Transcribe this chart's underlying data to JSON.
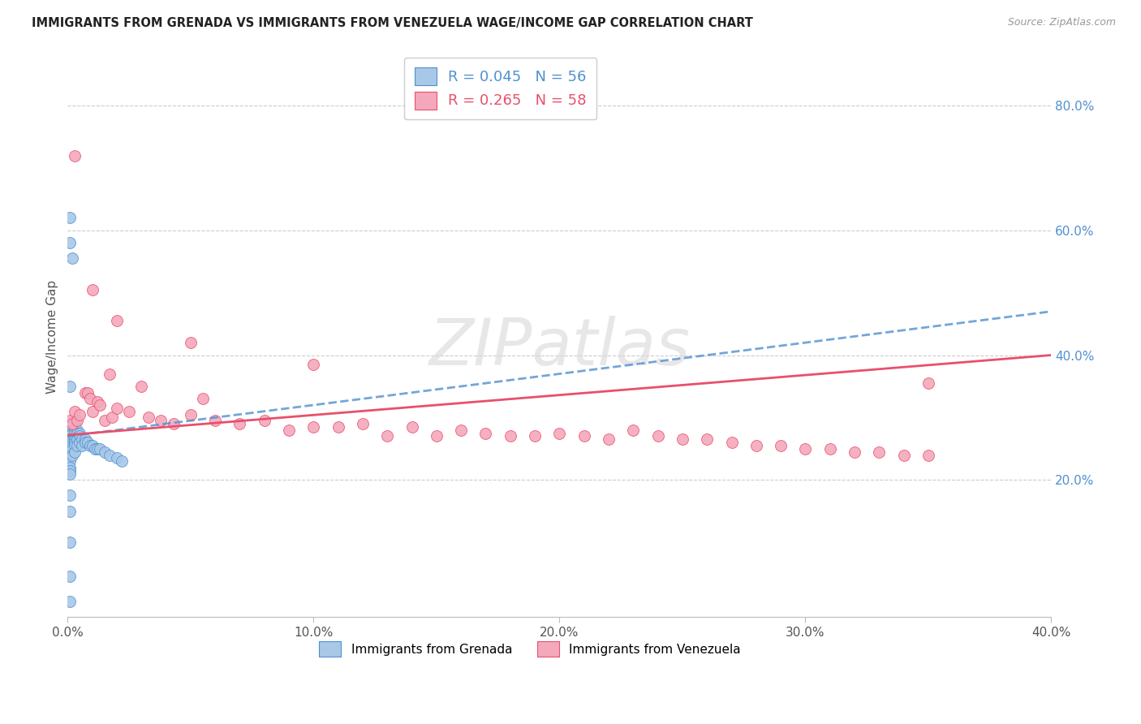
{
  "title": "IMMIGRANTS FROM GRENADA VS IMMIGRANTS FROM VENEZUELA WAGE/INCOME GAP CORRELATION CHART",
  "source": "Source: ZipAtlas.com",
  "ylabel": "Wage/Income Gap",
  "xlim": [
    0.0,
    0.4
  ],
  "ylim": [
    -0.02,
    0.88
  ],
  "xtick_labels": [
    "0.0%",
    "10.0%",
    "20.0%",
    "30.0%",
    "40.0%"
  ],
  "xtick_values": [
    0.0,
    0.1,
    0.2,
    0.3,
    0.4
  ],
  "ytick_labels": [
    "20.0%",
    "40.0%",
    "60.0%",
    "80.0%"
  ],
  "ytick_values": [
    0.2,
    0.4,
    0.6,
    0.8
  ],
  "grenada_R": 0.045,
  "grenada_N": 56,
  "venezuela_R": 0.265,
  "venezuela_N": 58,
  "grenada_color": "#a8c8e8",
  "venezuela_color": "#f4a8bc",
  "grenada_line_color": "#5090d0",
  "venezuela_line_color": "#e8506c",
  "watermark": "ZIPatlas",
  "grenada_x": [
    0.001,
    0.001,
    0.001,
    0.001,
    0.001,
    0.001,
    0.001,
    0.001,
    0.001,
    0.001,
    0.001,
    0.001,
    0.001,
    0.001,
    0.001,
    0.002,
    0.002,
    0.002,
    0.002,
    0.002,
    0.002,
    0.002,
    0.003,
    0.003,
    0.003,
    0.003,
    0.003,
    0.003,
    0.003,
    0.004,
    0.004,
    0.004,
    0.004,
    0.005,
    0.005,
    0.005,
    0.006,
    0.006,
    0.007,
    0.007,
    0.008,
    0.009,
    0.01,
    0.011,
    0.012,
    0.013,
    0.015,
    0.017,
    0.02,
    0.022,
    0.001,
    0.001,
    0.002,
    0.001,
    0.001,
    0.001
  ],
  "grenada_y": [
    0.28,
    0.27,
    0.265,
    0.26,
    0.255,
    0.25,
    0.245,
    0.24,
    0.23,
    0.22,
    0.215,
    0.21,
    0.175,
    0.15,
    0.1,
    0.285,
    0.275,
    0.265,
    0.26,
    0.255,
    0.25,
    0.24,
    0.29,
    0.28,
    0.275,
    0.265,
    0.26,
    0.255,
    0.245,
    0.28,
    0.275,
    0.265,
    0.255,
    0.275,
    0.27,
    0.26,
    0.265,
    0.255,
    0.265,
    0.26,
    0.26,
    0.255,
    0.255,
    0.25,
    0.25,
    0.25,
    0.245,
    0.24,
    0.235,
    0.23,
    0.58,
    0.62,
    0.555,
    0.35,
    0.045,
    0.005
  ],
  "venezuela_x": [
    0.001,
    0.002,
    0.003,
    0.004,
    0.005,
    0.007,
    0.008,
    0.009,
    0.01,
    0.012,
    0.013,
    0.015,
    0.017,
    0.018,
    0.02,
    0.025,
    0.03,
    0.033,
    0.038,
    0.043,
    0.05,
    0.055,
    0.06,
    0.07,
    0.08,
    0.09,
    0.1,
    0.11,
    0.12,
    0.13,
    0.14,
    0.15,
    0.16,
    0.17,
    0.18,
    0.19,
    0.2,
    0.21,
    0.22,
    0.23,
    0.24,
    0.25,
    0.26,
    0.27,
    0.28,
    0.29,
    0.3,
    0.31,
    0.32,
    0.33,
    0.34,
    0.35,
    0.003,
    0.01,
    0.02,
    0.05,
    0.1,
    0.35
  ],
  "venezuela_y": [
    0.295,
    0.29,
    0.31,
    0.295,
    0.305,
    0.34,
    0.34,
    0.33,
    0.31,
    0.325,
    0.32,
    0.295,
    0.37,
    0.3,
    0.315,
    0.31,
    0.35,
    0.3,
    0.295,
    0.29,
    0.305,
    0.33,
    0.295,
    0.29,
    0.295,
    0.28,
    0.285,
    0.285,
    0.29,
    0.27,
    0.285,
    0.27,
    0.28,
    0.275,
    0.27,
    0.27,
    0.275,
    0.27,
    0.265,
    0.28,
    0.27,
    0.265,
    0.265,
    0.26,
    0.255,
    0.255,
    0.25,
    0.25,
    0.245,
    0.245,
    0.24,
    0.24,
    0.72,
    0.505,
    0.455,
    0.42,
    0.385,
    0.355
  ]
}
